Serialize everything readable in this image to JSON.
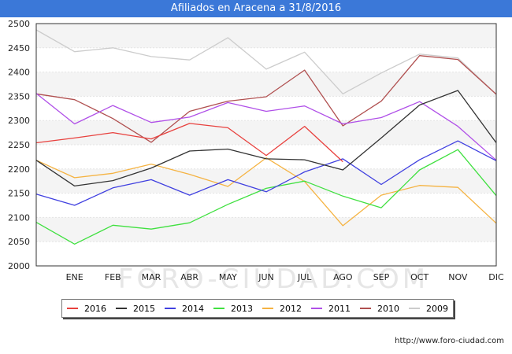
{
  "header": {
    "title": "Afiliados en Aracena a 31/8/2016"
  },
  "footer": {
    "source": "http://www.foro-ciudad.com"
  },
  "watermark": "FORO-CIUDAD.COM",
  "chart_data": {
    "type": "line",
    "title": "Afiliados en Aracena a 31/8/2016",
    "categories": [
      "",
      "ENE",
      "FEB",
      "MAR",
      "ABR",
      "MAY",
      "JUN",
      "JUL",
      "AGO",
      "SEP",
      "OCT",
      "NOV",
      "DIC"
    ],
    "ylim": [
      2000,
      2500
    ],
    "yticks": [
      2000,
      2050,
      2100,
      2150,
      2200,
      2250,
      2300,
      2350,
      2400,
      2450,
      2500
    ],
    "grid": "horizontal",
    "legend_position": "bottom",
    "series": [
      {
        "name": "2016",
        "color": "#e8413e",
        "values": [
          2254,
          2264,
          2275,
          2262,
          2294,
          2285,
          2228,
          2288,
          2215,
          null,
          null,
          null,
          null
        ]
      },
      {
        "name": "2015",
        "color": "#333333",
        "values": [
          2218,
          2165,
          2176,
          2202,
          2237,
          2241,
          2221,
          2219,
          2198,
          2264,
          2332,
          2362,
          2254
        ]
      },
      {
        "name": "2014",
        "color": "#4040e0",
        "values": [
          2148,
          2125,
          2161,
          2178,
          2146,
          2178,
          2153,
          2194,
          2221,
          2168,
          2219,
          2258,
          2217
        ]
      },
      {
        "name": "2013",
        "color": "#40e040",
        "values": [
          2090,
          2045,
          2084,
          2076,
          2089,
          2127,
          2160,
          2175,
          2144,
          2120,
          2198,
          2240,
          2145
        ]
      },
      {
        "name": "2012",
        "color": "#f5b342",
        "values": [
          2218,
          2182,
          2191,
          2210,
          2189,
          2164,
          2223,
          2174,
          2083,
          2146,
          2166,
          2162,
          2088
        ]
      },
      {
        "name": "2011",
        "color": "#b050e8",
        "values": [
          2356,
          2293,
          2331,
          2296,
          2307,
          2337,
          2319,
          2330,
          2293,
          2306,
          2339,
          2288,
          2218
        ]
      },
      {
        "name": "2010",
        "color": "#b05050",
        "values": [
          2355,
          2343,
          2304,
          2255,
          2319,
          2340,
          2349,
          2404,
          2289,
          2340,
          2434,
          2426,
          2354
        ]
      },
      {
        "name": "2009",
        "color": "#cccccc",
        "values": [
          2487,
          2442,
          2450,
          2432,
          2425,
          2471,
          2406,
          2441,
          2355,
          2398,
          2437,
          2429,
          2354
        ]
      }
    ]
  }
}
